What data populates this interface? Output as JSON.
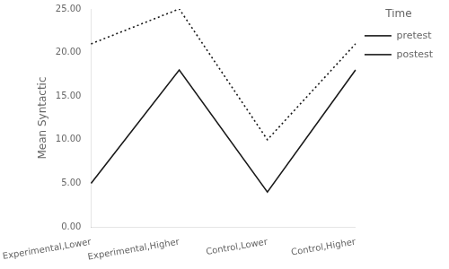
{
  "chart_data": {
    "type": "line",
    "categories": [
      "Experimental,Lower",
      "Experimental,Higher",
      "Control,Lower",
      "Control,Higher"
    ],
    "series": [
      {
        "name": "pretest",
        "color": "#1a1a1a",
        "line_style": "solid",
        "values": [
          5.0,
          18.0,
          4.0,
          18.0
        ]
      },
      {
        "name": "postest",
        "color": "#1a1a1a",
        "line_style": "dotted",
        "values": [
          21.0,
          25.0,
          10.0,
          21.0
        ]
      }
    ],
    "ylabel": "Mean Syntactic",
    "legend_title": "Time",
    "ylim": [
      0.0,
      25.0
    ],
    "yticks": [
      {
        "value": 0.0,
        "label": "0.00"
      },
      {
        "value": 5.0,
        "label": "5.00"
      },
      {
        "value": 10.0,
        "label": "10.00"
      },
      {
        "value": 15.0,
        "label": "15.00"
      },
      {
        "value": 20.0,
        "label": "20.00"
      },
      {
        "value": 25.0,
        "label": "25.00"
      }
    ],
    "grid": false,
    "legend": "right"
  }
}
